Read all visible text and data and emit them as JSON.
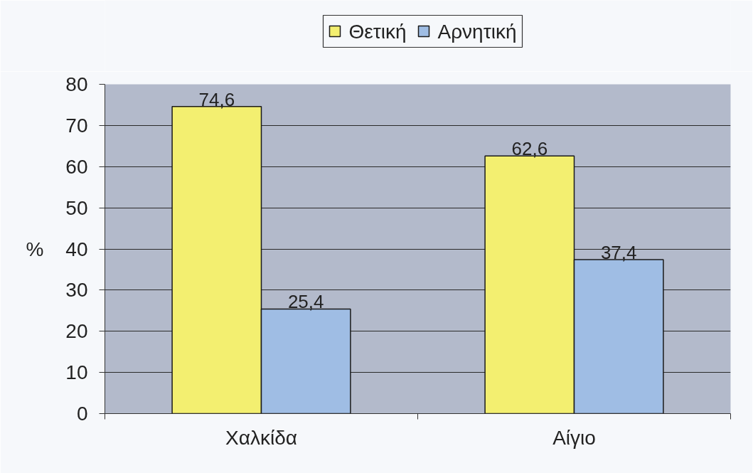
{
  "chart_data": {
    "type": "bar",
    "categories": [
      "Χαλκίδα",
      "Αίγιο"
    ],
    "ylabel": "%",
    "ylim": [
      0,
      80
    ],
    "yticks": [
      0,
      10,
      20,
      30,
      40,
      50,
      60,
      70,
      80
    ],
    "grid": "y",
    "legend": "top",
    "series": [
      {
        "name": "Θετική",
        "color": "#f3ef70",
        "values": [
          74.6,
          62.6
        ],
        "value_labels": [
          "74,6",
          "62,6"
        ]
      },
      {
        "name": "Αρνητική",
        "color": "#9fbde4",
        "values": [
          25.4,
          37.4
        ],
        "value_labels": [
          "25,4",
          "37,4"
        ]
      }
    ]
  }
}
